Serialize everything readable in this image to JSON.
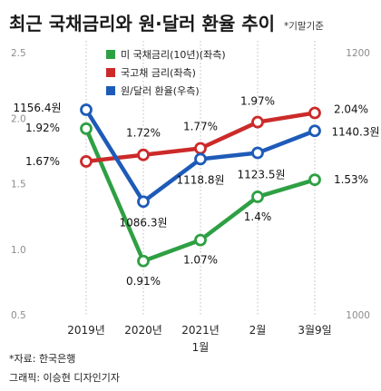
{
  "chart_data": {
    "type": "line",
    "title": "최근 국채금리와 원·달러 환율 추이",
    "subtitle": "*기말기준",
    "x_categories": [
      "2019년",
      "2020년",
      "2021년\n1월",
      "2월",
      "3월9일"
    ],
    "x_labels": [
      {
        "lines": [
          "2019년"
        ]
      },
      {
        "lines": [
          "2020년"
        ]
      },
      {
        "lines": [
          "2021년",
          "1월"
        ]
      },
      {
        "lines": [
          "2월"
        ]
      },
      {
        "lines": [
          "3월9일"
        ]
      }
    ],
    "left_axis": {
      "ticks": [
        "2.5",
        "2.0",
        "1.5",
        "1.0",
        "0.5"
      ],
      "ylim": [
        0.5,
        2.5
      ]
    },
    "right_axis": {
      "ticks": [
        "1200",
        "1000"
      ],
      "ylim": [
        1000,
        1200
      ]
    },
    "series": [
      {
        "name": "미 국채금리(10년)(좌측)",
        "axis": "left",
        "color": "#2ea043",
        "values": [
          1.92,
          0.91,
          1.07,
          1.4,
          1.53
        ],
        "labels": [
          "1.92%",
          "0.91%",
          "1.07%",
          "1.4%",
          "1.53%"
        ]
      },
      {
        "name": "국고채 금리(좌측)",
        "axis": "left",
        "color": "#cc2a2a",
        "values": [
          1.67,
          1.72,
          1.77,
          1.97,
          2.04
        ],
        "labels": [
          "1.67%",
          "1.72%",
          "1.77%",
          "1.97%",
          "2.04%"
        ]
      },
      {
        "name": "원/달러 환율(우측)",
        "axis": "right",
        "color": "#1e5bb8",
        "values": [
          1156.4,
          1086.3,
          1118.8,
          1123.5,
          1140.3
        ],
        "labels": [
          "1156.4원",
          "1086.3원",
          "1118.8원",
          "1123.5원",
          "1140.3원"
        ]
      }
    ],
    "grid": "vertical-dotted"
  },
  "footer": {
    "source": "*자료: 한국은행",
    "credit": "그래픽: 이승현 디자인기자"
  }
}
